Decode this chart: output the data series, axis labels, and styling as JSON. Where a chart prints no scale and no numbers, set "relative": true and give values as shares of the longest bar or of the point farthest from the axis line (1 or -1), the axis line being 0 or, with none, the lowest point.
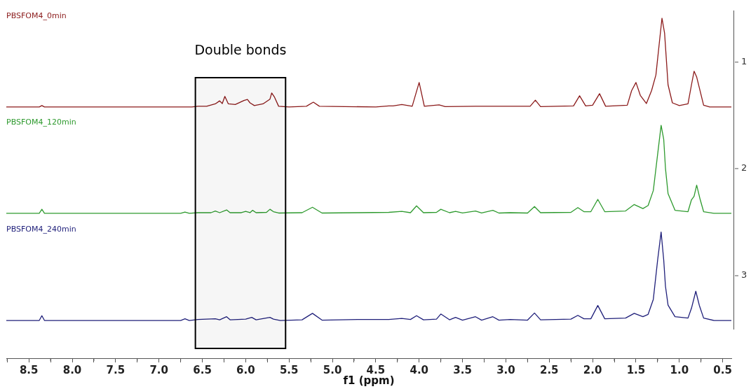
{
  "chart_data": {
    "type": "line",
    "relative": true,
    "xlabel": "f1 (ppm)",
    "xlim": [
      8.76,
      0.4
    ],
    "xticks": [
      {
        "value": 8.75,
        "label": null
      },
      8.5,
      {
        "value": 8.25,
        "label": null
      },
      {
        "value": 8,
        "label": "8.0"
      },
      {
        "value": 7.75,
        "label": null
      },
      7.5,
      {
        "value": 7.25,
        "label": null
      },
      {
        "value": 7,
        "label": "7.0"
      },
      {
        "value": 6.75,
        "label": null
      },
      6.5,
      {
        "value": 6.25,
        "label": null
      },
      {
        "value": 6,
        "label": "6.0"
      },
      {
        "value": 5.75,
        "label": null
      },
      5.5,
      {
        "value": 5.25,
        "label": null
      },
      {
        "value": 5,
        "label": "5.0"
      },
      {
        "value": 4.75,
        "label": null
      },
      4.5,
      {
        "value": 4.25,
        "label": null
      },
      {
        "value": 4,
        "label": "4.0"
      },
      {
        "value": 3.75,
        "label": null
      },
      3.5,
      {
        "value": 3.25,
        "label": null
      },
      {
        "value": 3,
        "label": "3.0"
      },
      {
        "value": 2.75,
        "label": null
      },
      2.5,
      {
        "value": 2.25,
        "label": null
      },
      {
        "value": 2,
        "label": "2.0"
      },
      {
        "value": 1.75,
        "label": null
      },
      1.5,
      {
        "value": 1.25,
        "label": null
      },
      {
        "value": 1,
        "label": "1.0"
      },
      {
        "value": 0.75,
        "label": null
      },
      0.5
    ],
    "annotations": [
      "1",
      "2",
      "3"
    ],
    "grid": false,
    "marker": "none",
    "line_style": "solid",
    "bands": [
      {
        "axis": "x",
        "from": 6.58,
        "to": 5.54,
        "label": "Double bonds",
        "color": "#000000"
      }
    ],
    "series": [
      {
        "name": "PBSFOM4_0min",
        "color": "#8b1a1a",
        "x": [
          8.76,
          8.38,
          8.35,
          8.32,
          6.62,
          6.55,
          6.45,
          6.35,
          6.3,
          6.27,
          6.24,
          6.2,
          6.12,
          6.02,
          5.98,
          5.95,
          5.9,
          5.8,
          5.72,
          5.7,
          5.67,
          5.62,
          5.5,
          5.3,
          5.22,
          5.15,
          4.5,
          4.35,
          4.3,
          4.2,
          4.08,
          4.0,
          3.94,
          3.77,
          3.7,
          3.35,
          3.15,
          2.72,
          2.66,
          2.6,
          2.22,
          2.15,
          2.08,
          2.0,
          1.92,
          1.85,
          1.6,
          1.55,
          1.5,
          1.45,
          1.38,
          1.32,
          1.27,
          1.23,
          1.2,
          1.17,
          1.13,
          1.08,
          1.0,
          0.9,
          0.86,
          0.83,
          0.8,
          0.77,
          0.72,
          0.65,
          0.4
        ],
        "values": [
          0.739,
          0.739,
          0.743,
          0.739,
          0.739,
          0.741,
          0.741,
          0.748,
          0.757,
          0.749,
          0.77,
          0.748,
          0.746,
          0.758,
          0.761,
          0.751,
          0.743,
          0.748,
          0.762,
          0.78,
          0.769,
          0.741,
          0.739,
          0.741,
          0.753,
          0.741,
          0.739,
          0.742,
          0.742,
          0.746,
          0.741,
          0.811,
          0.741,
          0.745,
          0.74,
          0.741,
          0.741,
          0.741,
          0.759,
          0.74,
          0.742,
          0.772,
          0.742,
          0.744,
          0.778,
          0.741,
          0.744,
          0.787,
          0.811,
          0.773,
          0.749,
          0.787,
          0.833,
          0.929,
          1,
          0.956,
          0.804,
          0.751,
          0.743,
          0.748,
          0.804,
          0.844,
          0.827,
          0.796,
          0.744,
          0.739,
          0.739
        ]
      },
      {
        "name": "PBSFOM4_120min",
        "color": "#2e9a2e",
        "x": [
          8.76,
          8.38,
          8.35,
          8.32,
          6.75,
          6.7,
          6.65,
          6.55,
          6.4,
          6.35,
          6.3,
          6.22,
          6.18,
          6.05,
          6.0,
          5.95,
          5.92,
          5.88,
          5.76,
          5.72,
          5.68,
          5.62,
          5.35,
          5.23,
          5.12,
          4.7,
          4.35,
          4.2,
          4.1,
          4.03,
          3.95,
          3.8,
          3.75,
          3.65,
          3.58,
          3.5,
          3.35,
          3.28,
          3.15,
          3.08,
          2.95,
          2.75,
          2.67,
          2.6,
          2.25,
          2.17,
          2.1,
          2.02,
          1.94,
          1.86,
          1.62,
          1.52,
          1.42,
          1.36,
          1.3,
          1.25,
          1.21,
          1.18,
          1.16,
          1.13,
          1.05,
          0.9,
          0.86,
          0.83,
          0.8,
          0.76,
          0.72,
          0.6,
          0.4
        ],
        "values": [
          0.426,
          0.426,
          0.438,
          0.426,
          0.426,
          0.43,
          0.426,
          0.428,
          0.428,
          0.433,
          0.428,
          0.436,
          0.428,
          0.428,
          0.432,
          0.428,
          0.435,
          0.428,
          0.429,
          0.438,
          0.431,
          0.427,
          0.428,
          0.444,
          0.427,
          0.428,
          0.429,
          0.432,
          0.428,
          0.448,
          0.428,
          0.429,
          0.438,
          0.428,
          0.432,
          0.427,
          0.433,
          0.427,
          0.435,
          0.427,
          0.428,
          0.427,
          0.446,
          0.428,
          0.429,
          0.443,
          0.431,
          0.431,
          0.467,
          0.431,
          0.433,
          0.452,
          0.44,
          0.449,
          0.493,
          0.6,
          0.685,
          0.644,
          0.559,
          0.484,
          0.435,
          0.431,
          0.466,
          0.476,
          0.509,
          0.467,
          0.431,
          0.426,
          0.426
        ]
      },
      {
        "name": "PBSFOM4_240min",
        "color": "#1f1f7a",
        "x": [
          8.76,
          8.38,
          8.35,
          8.32,
          6.75,
          6.7,
          6.65,
          6.55,
          6.35,
          6.3,
          6.22,
          6.18,
          6.0,
          5.93,
          5.88,
          5.72,
          5.68,
          5.6,
          5.35,
          5.23,
          5.12,
          4.7,
          4.35,
          4.2,
          4.1,
          4.03,
          3.95,
          3.8,
          3.75,
          3.65,
          3.58,
          3.5,
          3.35,
          3.28,
          3.15,
          3.08,
          2.95,
          2.75,
          2.67,
          2.6,
          2.25,
          2.17,
          2.1,
          2.02,
          1.94,
          1.86,
          1.62,
          1.52,
          1.42,
          1.36,
          1.3,
          1.25,
          1.21,
          1.18,
          1.16,
          1.13,
          1.05,
          0.9,
          0.86,
          0.81,
          0.77,
          0.72,
          0.6,
          0.4
        ],
        "values": [
          0.111,
          0.111,
          0.125,
          0.111,
          0.111,
          0.116,
          0.111,
          0.114,
          0.116,
          0.113,
          0.122,
          0.113,
          0.115,
          0.12,
          0.113,
          0.12,
          0.115,
          0.111,
          0.113,
          0.132,
          0.112,
          0.114,
          0.114,
          0.117,
          0.114,
          0.125,
          0.113,
          0.115,
          0.13,
          0.113,
          0.12,
          0.112,
          0.122,
          0.112,
          0.122,
          0.112,
          0.114,
          0.112,
          0.133,
          0.113,
          0.115,
          0.126,
          0.116,
          0.116,
          0.155,
          0.116,
          0.118,
          0.132,
          0.122,
          0.129,
          0.173,
          0.289,
          0.371,
          0.289,
          0.212,
          0.156,
          0.122,
          0.118,
          0.147,
          0.197,
          0.156,
          0.118,
          0.111,
          0.111
        ]
      }
    ]
  }
}
